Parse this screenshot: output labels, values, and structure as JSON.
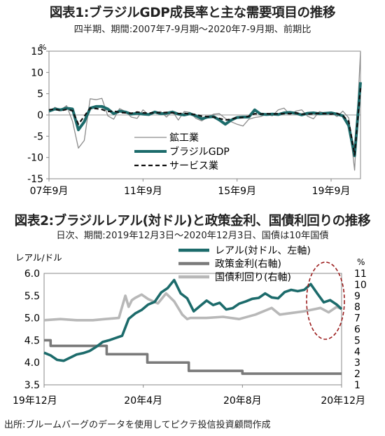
{
  "chart1": {
    "title": "図表1:ブラジルGDP成長率と主な需要項目の推移",
    "subtitle": "四半期、期間:2007年7-9月期〜2020年7-9月期、前期比",
    "chart_data": {
      "type": "line",
      "x_tick_labels": [
        "07年9月",
        "11年9月",
        "15年9月",
        "19年9月"
      ],
      "x_tick_index": [
        0,
        16,
        32,
        48
      ],
      "y_unit": "%",
      "ylim": [
        -15,
        15
      ],
      "y_ticks": [
        15,
        10,
        5,
        0,
        -5,
        -10,
        -15
      ],
      "legend_position": "lower-center",
      "series": [
        {
          "name": "鉱工業",
          "color": "#8c8c8c",
          "values": [
            0.6,
            1.8,
            1.2,
            2.2,
            -1.5,
            -7.8,
            -6.0,
            3.8,
            3.6,
            3.9,
            -0.2,
            -1.0,
            1.5,
            0.8,
            -0.5,
            -0.8,
            1.2,
            0.0,
            0.6,
            0.8,
            -0.5,
            0.9,
            -1.2,
            0.8,
            0.6,
            -0.8,
            -1.4,
            -0.5,
            0.2,
            0.3,
            -0.8,
            -1.6,
            -2.2,
            -2.6,
            -1.0,
            -0.6,
            -0.4,
            0.2,
            -0.2,
            1.2,
            1.6,
            0.1,
            0.9,
            1.2,
            -0.3,
            -0.9,
            0.8,
            0.4,
            0.6,
            -0.4,
            0.9,
            -0.7,
            -13.0,
            14.8
          ]
        },
        {
          "name": "ブラジルGDP",
          "color": "#1c6b6b",
          "values": [
            0.9,
            1.4,
            1.2,
            1.6,
            1.4,
            -3.5,
            -1.6,
            1.6,
            2.0,
            2.0,
            1.4,
            0.3,
            0.9,
            0.7,
            0.2,
            0.4,
            0.2,
            0.1,
            0.7,
            0.3,
            0.4,
            0.7,
            0.2,
            0.0,
            0.3,
            -0.2,
            -0.9,
            -0.5,
            -0.4,
            -1.2,
            -2.2,
            -1.2,
            -0.6,
            -0.5,
            -0.5,
            1.2,
            0.2,
            0.1,
            0.2,
            0.1,
            0.5,
            0.6,
            0.4,
            0.0,
            0.4,
            0.5,
            0.3,
            0.4,
            0.5,
            0.2,
            -0.2,
            -2.5,
            -9.6,
            7.7
          ]
        },
        {
          "name": "サービス業",
          "color": "#111111",
          "values": [
            1.2,
            1.4,
            1.0,
            1.3,
            1.0,
            -2.2,
            -0.3,
            1.6,
            1.5,
            1.3,
            0.8,
            0.9,
            0.6,
            0.5,
            0.4,
            0.7,
            0.5,
            0.4,
            0.6,
            0.5,
            0.6,
            0.5,
            0.3,
            0.4,
            0.2,
            0.1,
            -0.3,
            -0.4,
            -0.5,
            -0.8,
            -1.2,
            -1.0,
            -0.6,
            -0.6,
            -0.3,
            0.3,
            0.2,
            0.3,
            0.2,
            0.3,
            0.3,
            0.3,
            0.5,
            0.2,
            0.2,
            0.3,
            0.4,
            0.3,
            0.2,
            0.4,
            -0.2,
            -1.5,
            -9.4,
            6.3
          ]
        }
      ]
    }
  },
  "chart2": {
    "title": "図表2:ブラジルレアル(対ドル)と政策金利、国債利回りの推移",
    "subtitle": "日次、期間:2019年12月3日〜2020年12月3日、国債は10年国債",
    "chart_data": {
      "type": "line",
      "x_tick_labels": [
        "19年12月",
        "20年4月",
        "20年8月",
        "20年12月"
      ],
      "x_tick_days": [
        0,
        122,
        244,
        366
      ],
      "y_left_label": "レアル/ドル",
      "y_right_unit": "%",
      "ylim_left": [
        3.5,
        6.0
      ],
      "y_left_ticks": [
        6.0,
        5.5,
        5.0,
        4.5,
        4.0,
        3.5
      ],
      "ylim_right": [
        1,
        11
      ],
      "y_right_ticks": [
        11,
        10,
        9,
        8,
        7,
        6,
        5,
        4,
        3,
        2,
        1
      ],
      "legend_position": "top-right",
      "annotation": "dashed red ellipse around the most recent period",
      "series": [
        {
          "name": "レアル(対ドル、左軸)",
          "axis": "left",
          "color": "#1c6b6b",
          "x": [
            0,
            8,
            16,
            24,
            32,
            40,
            48,
            56,
            64,
            72,
            80,
            88,
            96,
            104,
            112,
            120,
            128,
            136,
            144,
            152,
            160,
            168,
            176,
            184,
            192,
            200,
            208,
            216,
            224,
            232,
            240,
            248,
            256,
            264,
            272,
            280,
            288,
            296,
            304,
            312,
            320,
            328,
            336,
            344,
            352,
            360,
            366
          ],
          "values": [
            4.22,
            4.16,
            4.06,
            4.04,
            4.11,
            4.18,
            4.21,
            4.26,
            4.35,
            4.46,
            4.5,
            4.55,
            4.6,
            4.98,
            5.1,
            5.18,
            5.3,
            5.36,
            5.57,
            5.67,
            5.85,
            5.55,
            5.44,
            5.15,
            5.27,
            5.39,
            5.29,
            5.34,
            5.19,
            5.22,
            5.32,
            5.37,
            5.43,
            5.45,
            5.55,
            5.46,
            5.44,
            5.58,
            5.63,
            5.6,
            5.63,
            5.76,
            5.55,
            5.35,
            5.4,
            5.3,
            5.2
          ]
        },
        {
          "name": "政策金利(右軸)",
          "axis": "right",
          "color": "#7a7a7a",
          "x": [
            0,
            8,
            8,
            77,
            77,
            127,
            127,
            178,
            178,
            244,
            244,
            366
          ],
          "values": [
            5.0,
            5.0,
            4.5,
            4.5,
            3.75,
            3.75,
            3.0,
            3.0,
            2.25,
            2.25,
            2.0,
            2.0
          ]
        },
        {
          "name": "国債利回り(右軸)",
          "axis": "right",
          "color": "#b8b8b8",
          "x": [
            0,
            20,
            40,
            60,
            75,
            92,
            100,
            104,
            108,
            112,
            120,
            128,
            140,
            150,
            160,
            170,
            176,
            180,
            188,
            200,
            220,
            240,
            260,
            280,
            290,
            300,
            320,
            340,
            350,
            360,
            366
          ],
          "values": [
            6.8,
            6.9,
            6.8,
            6.8,
            6.9,
            7.0,
            9.0,
            8.0,
            8.6,
            8.8,
            9.1,
            8.7,
            8.3,
            9.2,
            8.5,
            7.3,
            6.9,
            7.0,
            7.0,
            7.0,
            7.1,
            6.9,
            7.3,
            7.9,
            7.3,
            7.4,
            7.6,
            7.9,
            7.5,
            8.0,
            7.8
          ]
        }
      ]
    }
  },
  "source": "出所:ブルームバーグのデータを使用してピクテ投信投資顧問作成"
}
